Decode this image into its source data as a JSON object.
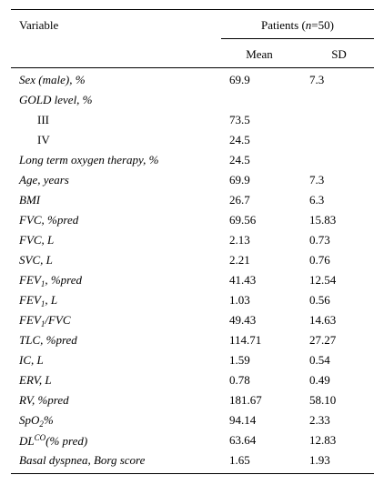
{
  "header": {
    "variable": "Variable",
    "patients_prefix": "Patients (",
    "patients_n": "n",
    "patients_suffix": "=50)",
    "mean": "Mean",
    "sd": "SD"
  },
  "rows": [
    {
      "var": "Sex (male), %",
      "mean": "69.9",
      "sd": "7.3"
    },
    {
      "var": "GOLD level, %",
      "mean": "",
      "sd": ""
    },
    {
      "var": "III",
      "mean": "73.5",
      "sd": ""
    },
    {
      "var": "IV",
      "mean": "24.5",
      "sd": ""
    },
    {
      "var": "Long term oxygen therapy, %",
      "mean": "24.5",
      "sd": ""
    },
    {
      "var": "Age, years",
      "mean": "69.9",
      "sd": "7.3"
    },
    {
      "var": "BMI",
      "mean": "26.7",
      "sd": "6.3"
    },
    {
      "var": "FVC, %pred",
      "mean": "69.56",
      "sd": "15.83"
    },
    {
      "var": "FVC, L",
      "mean": "2.13",
      "sd": "0.73"
    },
    {
      "var": "SVC, L",
      "mean": "2.21",
      "sd": "0.76"
    },
    {
      "var_main": "FEV",
      "var_sub": "1",
      "var_rest": ", %pred",
      "mean": "41.43",
      "sd": "12.54"
    },
    {
      "var_main": "FEV",
      "var_sub": "1",
      "var_rest": ", L",
      "mean": "1.03",
      "sd": "0.56"
    },
    {
      "var_main": "FEV",
      "var_sub": "1",
      "var_rest": "/FVC",
      "mean": "49.43",
      "sd": "14.63"
    },
    {
      "var": "TLC, %pred",
      "mean": "114.71",
      "sd": "27.27"
    },
    {
      "var": "IC, L",
      "mean": "1.59",
      "sd": "0.54"
    },
    {
      "var": "ERV, L",
      "mean": "0.78",
      "sd": "0.49"
    },
    {
      "var": "RV, %pred",
      "mean": "181.67",
      "sd": "58.10"
    },
    {
      "var_main": "SpO",
      "var_sub": "2",
      "var_rest": "%",
      "mean": "94.14",
      "sd": "2.33"
    },
    {
      "var_main": "DL",
      "var_sup": "CO",
      "var_rest": "(% pred)",
      "mean": "63.64",
      "sd": "12.83"
    },
    {
      "var": "Basal dyspnea, Borg score",
      "mean": "1.65",
      "sd": "1.93"
    }
  ]
}
